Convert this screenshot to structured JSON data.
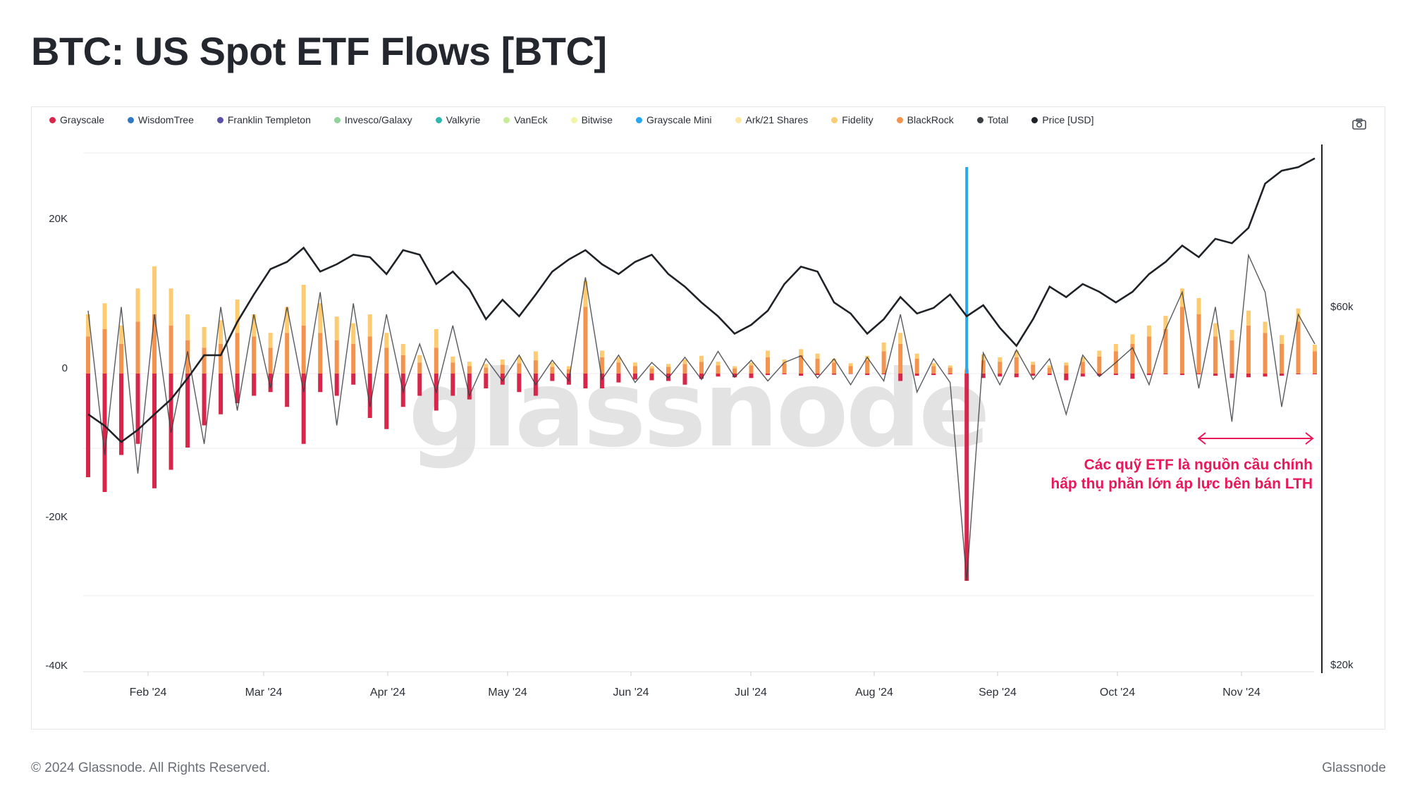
{
  "title": "BTC: US Spot ETF Flows [BTC]",
  "legend": [
    {
      "name": "Grayscale",
      "color": "#d7264a"
    },
    {
      "name": "WisdomTree",
      "color": "#2f79c3"
    },
    {
      "name": "Franklin Templeton",
      "color": "#5a4fa6"
    },
    {
      "name": "Invesco/Galaxy",
      "color": "#8fd39a"
    },
    {
      "name": "Valkyrie",
      "color": "#2fb7b0"
    },
    {
      "name": "VanEck",
      "color": "#c7ec95"
    },
    {
      "name": "Bitwise",
      "color": "#f2f5a8"
    },
    {
      "name": "Grayscale Mini",
      "color": "#26a7f0"
    },
    {
      "name": "Ark/21 Shares",
      "color": "#fde7a2"
    },
    {
      "name": "Fidelity",
      "color": "#fccb72"
    },
    {
      "name": "BlackRock",
      "color": "#f4934d"
    },
    {
      "name": "Total",
      "color": "#3a3d42"
    },
    {
      "name": "Price [USD]",
      "color": "#1f2226"
    }
  ],
  "camera_icon": "camera-icon",
  "watermark": "glassnode",
  "annotation": {
    "line1": "Các quỹ ETF là nguồn cầu chính",
    "line2": "hấp thụ phần lớn áp lực bên bán LTH",
    "color": "#e8185a"
  },
  "footer": {
    "copyright": "© 2024 Glassnode. All Rights Reserved.",
    "brand": "Glassnode"
  },
  "chart_data": {
    "type": "bar",
    "title": "BTC: US Spot ETF Flows [BTC]",
    "x_tick_labels": [
      "Feb '24",
      "Mar '24",
      "Apr '24",
      "May '24",
      "Jun '24",
      "Jul '24",
      "Aug '24",
      "Sep '24",
      "Oct '24",
      "Nov '24"
    ],
    "x_range": [
      "2024-01-11",
      "2024-11-20"
    ],
    "y_left_tick_labels": [
      "20K",
      "0",
      "-20K",
      "-40K"
    ],
    "y_left_range": [
      -40000,
      30000
    ],
    "y_right_tick_labels": [
      "$60k",
      "$20k"
    ],
    "y_right_scale": "log",
    "y_right_range": [
      20000,
      100000
    ],
    "grid": true,
    "legend_position": "top",
    "series": [
      {
        "name": "Grayscale",
        "values": [
          -14000,
          -16000,
          -11000,
          -9500,
          -15500,
          -13000,
          -10000,
          -7000,
          -5500,
          -4000,
          -3000,
          -2500,
          -4500,
          -9500,
          -2500,
          -3000,
          -1500,
          -6000,
          -7500,
          -4500,
          -3000,
          -5000,
          -3000,
          -3500,
          -2000,
          -1500,
          -2500,
          -3000,
          -1000,
          -1500,
          -2000,
          -2000,
          -1200,
          -800,
          -900,
          -1000,
          -1500,
          -700,
          -400,
          -500,
          -600,
          -200,
          -100,
          -300,
          -200,
          -150,
          -50,
          -200,
          -100,
          -1000,
          -300,
          -200,
          -100,
          -28000,
          -600,
          -400,
          -500,
          -300,
          -200,
          -900,
          -400,
          -300,
          -200,
          -700,
          -200,
          -100,
          -200,
          -100,
          -300,
          -600,
          -500,
          -400,
          -300,
          -100,
          -100
        ]
      },
      {
        "name": "Fidelity",
        "values": [
          3000,
          3500,
          2500,
          4500,
          6500,
          5000,
          3500,
          2800,
          3200,
          4500,
          3000,
          2000,
          3500,
          5500,
          4000,
          3200,
          2800,
          3000,
          2000,
          1500,
          1000,
          2500,
          800,
          600,
          500,
          700,
          900,
          1200,
          600,
          400,
          3500,
          900,
          700,
          500,
          300,
          400,
          600,
          800,
          500,
          300,
          400,
          900,
          500,
          800,
          700,
          500,
          400,
          600,
          1200,
          1500,
          700,
          400,
          300,
          200,
          800,
          600,
          900,
          400,
          300,
          400,
          600,
          800,
          1000,
          1300,
          1500,
          1800,
          2500,
          2200,
          1800,
          1400,
          2000,
          1500,
          1200,
          1800,
          900
        ]
      },
      {
        "name": "BlackRock",
        "values": [
          5000,
          6000,
          4000,
          7000,
          8000,
          6500,
          4500,
          3500,
          4000,
          5500,
          5000,
          3500,
          5500,
          6500,
          5500,
          4500,
          4000,
          5000,
          3500,
          2500,
          1500,
          3500,
          1500,
          1000,
          800,
          1200,
          1400,
          1800,
          900,
          600,
          9000,
          2200,
          1500,
          1000,
          700,
          900,
          1300,
          1600,
          1100,
          700,
          1100,
          2200,
          1400,
          2500,
          2000,
          1500,
          1000,
          1800,
          3000,
          4000,
          2000,
          1000,
          800,
          500,
          1800,
          1600,
          2200,
          1200,
          800,
          1100,
          1600,
          2300,
          3000,
          4000,
          5000,
          6000,
          9000,
          8000,
          5000,
          4500,
          6500,
          5500,
          4000,
          7000,
          3000
        ]
      },
      {
        "name": "Total",
        "values": [
          8500,
          -11000,
          9000,
          -13500,
          8000,
          -8000,
          3000,
          -9500,
          9000,
          -5000,
          8000,
          -2000,
          9000,
          -2500,
          11000,
          -7000,
          9500,
          -4500,
          8000,
          -2500,
          4000,
          -2500,
          6500,
          -3000,
          2000,
          -1000,
          2500,
          -1500,
          1800,
          -1000,
          13000,
          -800,
          2500,
          -1200,
          1500,
          -600,
          2200,
          -800,
          3000,
          -500,
          1800,
          -1000,
          1500,
          2400,
          -600,
          2000,
          -1500,
          2200,
          -1000,
          8000,
          -2500,
          2000,
          -1200,
          -28000,
          2800,
          -1500,
          3200,
          -800,
          2000,
          -5500,
          2500,
          -400,
          1500,
          3500,
          -1500,
          6000,
          11000,
          -2000,
          9000,
          -6500,
          16000,
          11000,
          -4500,
          8000,
          4000
        ]
      },
      {
        "name": "Price [USD]",
        "values": [
          43000,
          41500,
          39500,
          41000,
          43000,
          45000,
          48000,
          51500,
          51500,
          57000,
          62000,
          67000,
          68500,
          71500,
          66500,
          68000,
          70000,
          69500,
          66000,
          71000,
          70000,
          64000,
          66500,
          63000,
          57500,
          61000,
          58000,
          62000,
          66500,
          69000,
          71000,
          68000,
          66000,
          68500,
          70000,
          66000,
          63500,
          60500,
          58000,
          55000,
          56500,
          59000,
          64000,
          67500,
          66500,
          60500,
          58500,
          55000,
          57500,
          61500,
          58500,
          59500,
          62000,
          58000,
          60000,
          56000,
          53000,
          57500,
          63500,
          61500,
          64000,
          62500,
          60500,
          62500,
          66000,
          68500,
          72000,
          69500,
          73500,
          72500,
          76000,
          87000,
          90500,
          91500,
          94000
        ]
      }
    ],
    "annotation_arrow": "double-headed arrow over Nov '24 period"
  }
}
